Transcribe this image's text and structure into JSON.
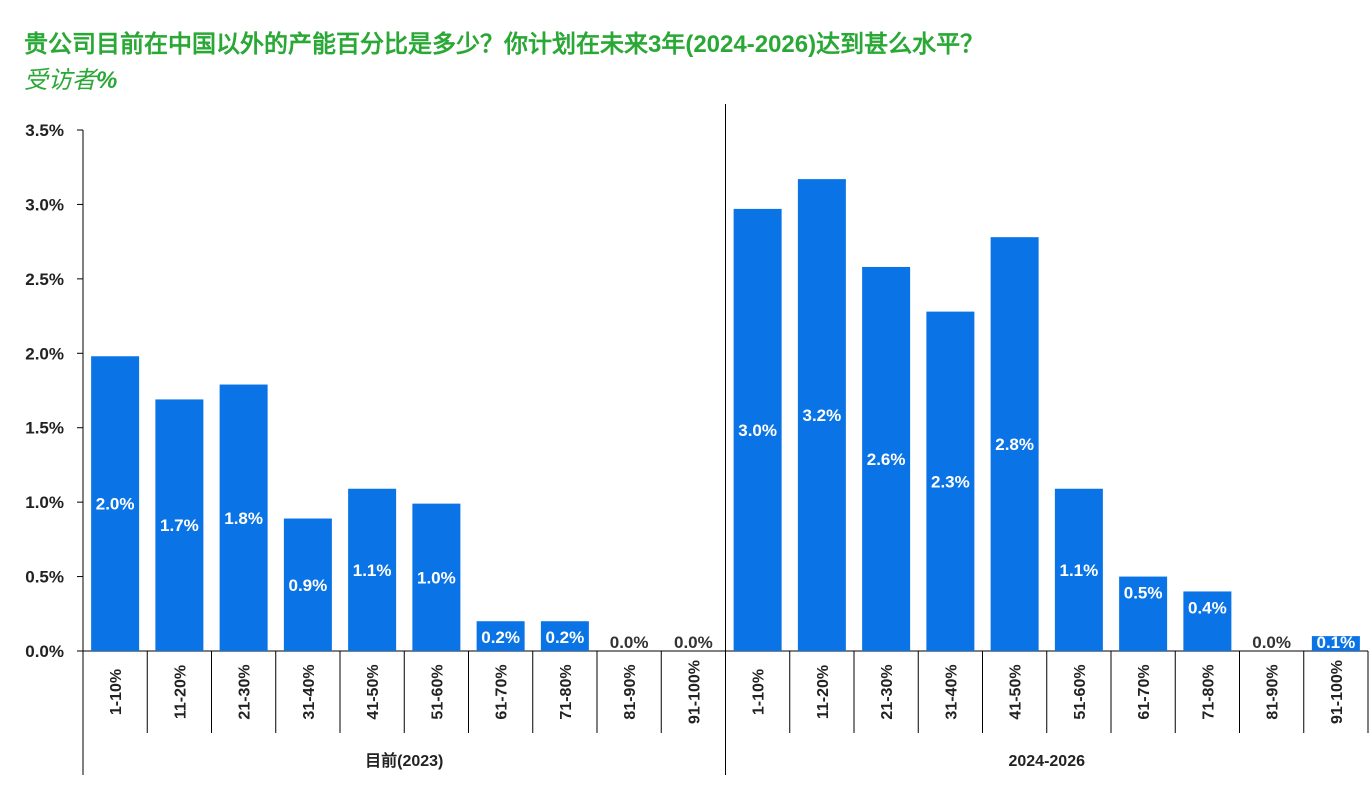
{
  "header": {
    "title": "贵公司目前在中国以外的产能百分比是多少？你计划在未来3年(2024-2026)达到甚么水平？",
    "subtitle_main": "受访者",
    "subtitle_unit": "%"
  },
  "colors": {
    "title": "#2aa836",
    "bar": "#0a73e6",
    "bar_label_inside": "#ffffff",
    "bar_label_zero": "#333333",
    "axis": "#000000"
  },
  "chart_data": {
    "type": "bar",
    "y_ticks": [
      "0.0%",
      "0.5%",
      "1.0%",
      "1.5%",
      "2.0%",
      "2.5%",
      "3.0%",
      "3.5%"
    ],
    "ylim": [
      0,
      3.5
    ],
    "grid": false,
    "groups": [
      {
        "name": "目前(2023)",
        "categories": [
          "1-10%",
          "11-20%",
          "21-30%",
          "31-40%",
          "41-50%",
          "51-60%",
          "61-70%",
          "71-80%",
          "81-90%",
          "91-100%"
        ],
        "values": [
          1.98,
          1.69,
          1.79,
          0.89,
          1.09,
          0.99,
          0.2,
          0.2,
          0.0,
          0.0
        ],
        "labels": [
          "2.0%",
          "1.7%",
          "1.8%",
          "0.9%",
          "1.1%",
          "1.0%",
          "0.2%",
          "0.2%",
          "0.0%",
          "0.0%"
        ]
      },
      {
        "name": "2024-2026",
        "categories": [
          "1-10%",
          "11-20%",
          "21-30%",
          "31-40%",
          "41-50%",
          "51-60%",
          "61-70%",
          "71-80%",
          "81-90%",
          "91-100%"
        ],
        "values": [
          2.97,
          3.17,
          2.58,
          2.28,
          2.78,
          1.09,
          0.5,
          0.4,
          0.0,
          0.1
        ],
        "labels": [
          "3.0%",
          "3.2%",
          "2.6%",
          "2.3%",
          "2.8%",
          "1.1%",
          "0.5%",
          "0.4%",
          "0.0%",
          "0.1%"
        ]
      }
    ]
  }
}
